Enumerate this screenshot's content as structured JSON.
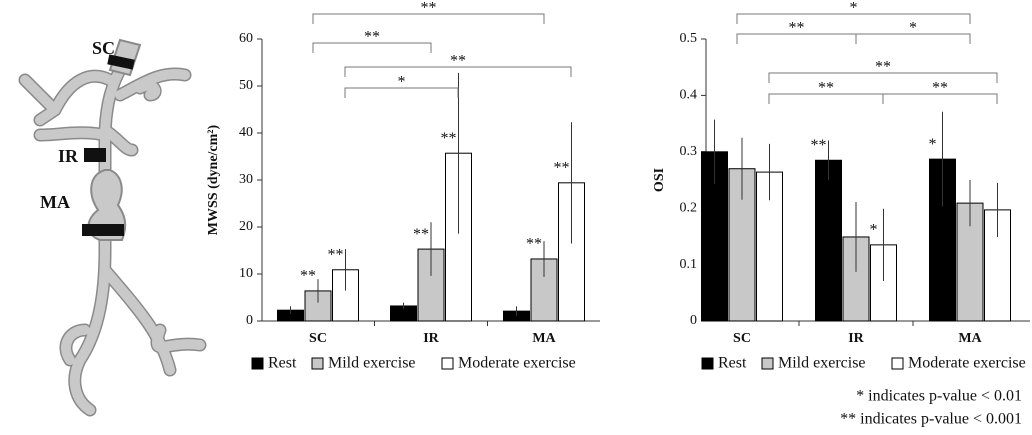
{
  "illustration": {
    "labels": [
      "SC",
      "IR",
      "MA"
    ]
  },
  "chart_data": [
    {
      "type": "bar",
      "y_label": "MWSS (dyne/cm²)",
      "categories": [
        "SC",
        "IR",
        "MA"
      ],
      "series": [
        {
          "name": "Rest",
          "color": "#000000",
          "values": [
            2.3,
            3.2,
            2.1
          ],
          "errors": [
            0.8,
            0.7,
            1.0
          ],
          "stars": [
            null,
            null,
            null
          ]
        },
        {
          "name": "Mild exercise",
          "color": "#c8c8c8",
          "values": [
            6.4,
            15.3,
            13.2
          ],
          "errors": [
            2.5,
            5.7,
            3.8
          ],
          "stars": [
            "**",
            "**",
            "**"
          ]
        },
        {
          "name": "Moderate exercise",
          "color": "#ffffff",
          "values": [
            10.9,
            35.7,
            29.4
          ],
          "errors": [
            4.4,
            17.1,
            12.9
          ],
          "stars": [
            "**",
            "**",
            "**"
          ]
        }
      ],
      "ylim": [
        0,
        60
      ],
      "yticks": [
        0,
        10,
        20,
        30,
        40,
        50,
        60
      ],
      "brackets": [
        [
          {
            "text": "**",
            "between": [
              "SC",
              "MA"
            ]
          }
        ],
        [
          {
            "text": "**",
            "between": [
              "SC",
              "IR"
            ]
          }
        ],
        [
          {
            "text": "**",
            "between": [
              "SC",
              "MA"
            ]
          }
        ],
        [
          {
            "text": "*",
            "between": [
              "SC",
              "IR"
            ]
          }
        ]
      ]
    },
    {
      "type": "bar",
      "y_label": "OSI",
      "categories": [
        "SC",
        "IR",
        "MA"
      ],
      "series": [
        {
          "name": "Rest",
          "color": "#000000",
          "values": [
            0.3,
            0.285,
            0.287
          ],
          "errors": [
            0.057,
            0.035,
            0.084
          ],
          "stars": [
            null,
            "**",
            "*"
          ]
        },
        {
          "name": "Mild exercise",
          "color": "#c8c8c8",
          "values": [
            0.27,
            0.149,
            0.209
          ],
          "errors": [
            0.055,
            0.062,
            0.041
          ],
          "stars": [
            null,
            null,
            null
          ]
        },
        {
          "name": "Moderate exercise",
          "color": "#ffffff",
          "values": [
            0.264,
            0.135,
            0.197
          ],
          "errors": [
            0.05,
            0.064,
            0.048
          ],
          "stars": [
            null,
            "*",
            null
          ]
        }
      ],
      "ylim": [
        0,
        0.5
      ],
      "yticks": [
        0,
        0.1,
        0.2,
        0.3,
        0.4,
        0.5
      ],
      "brackets": [
        [
          {
            "text": "*",
            "between": [
              "SC",
              "MA"
            ]
          }
        ],
        [
          {
            "text": "**",
            "between": [
              "SC",
              "IR"
            ]
          },
          {
            "text": "*",
            "between": [
              "IR",
              "MA"
            ]
          }
        ],
        [
          {
            "text": "**",
            "between": [
              "SC",
              "MA"
            ]
          }
        ],
        [
          {
            "text": "**",
            "between": [
              "SC",
              "IR"
            ]
          },
          {
            "text": "**",
            "between": [
              "IR",
              "MA"
            ]
          }
        ]
      ]
    }
  ],
  "notes": [
    "* indicates p-value < 0.01",
    "** indicates p-value < 0.001"
  ]
}
